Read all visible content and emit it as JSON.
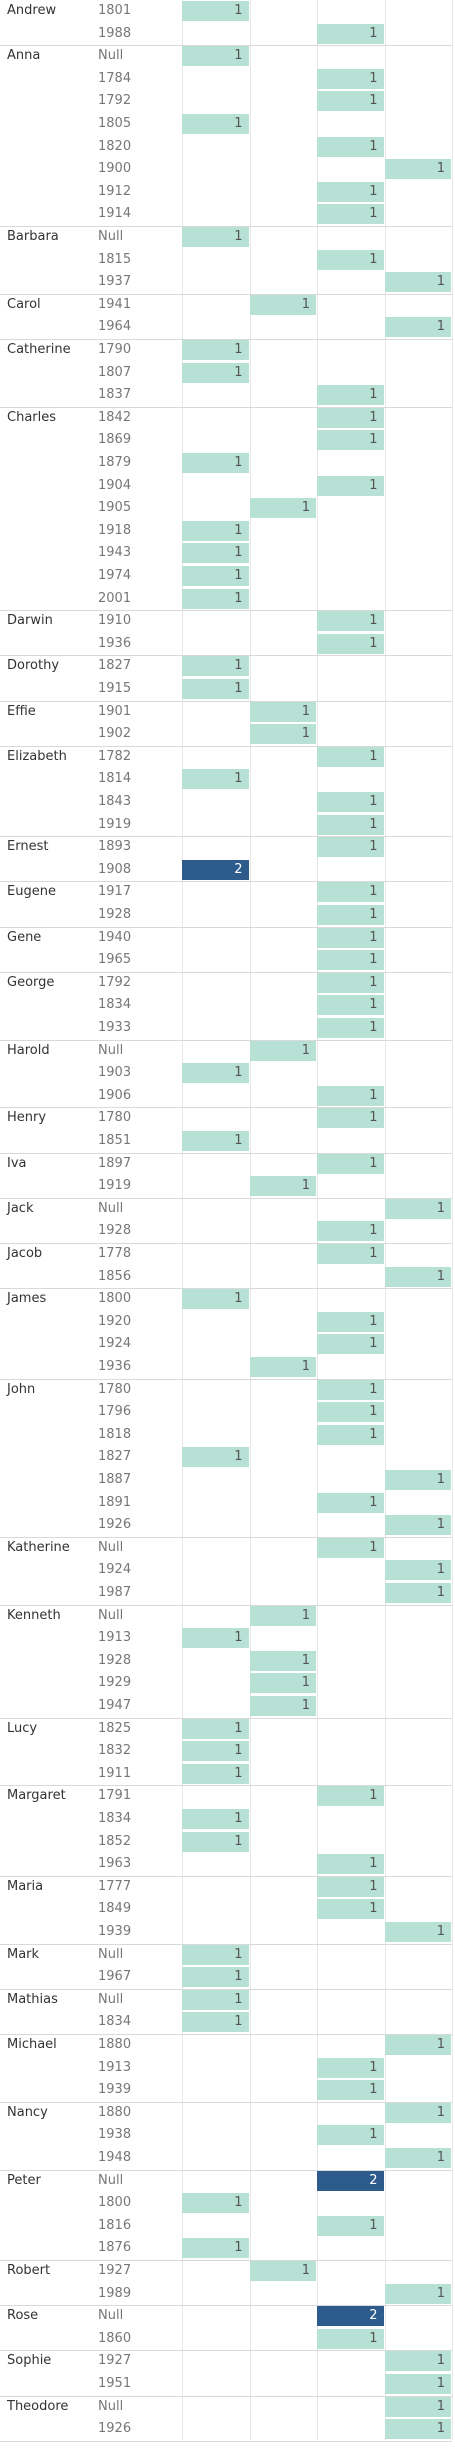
{
  "columns": 4,
  "colors": {
    "low": "#b7e1d5",
    "high": "#2c5b8c"
  },
  "chart_data": {
    "type": "table",
    "groups": [
      {
        "name": "Andrew",
        "rows": [
          {
            "year": "1801",
            "col": 0,
            "value": 1
          },
          {
            "year": "1988",
            "col": 2,
            "value": 1
          }
        ]
      },
      {
        "name": "Anna",
        "rows": [
          {
            "year": "Null",
            "col": 0,
            "value": 1
          },
          {
            "year": "1784",
            "col": 2,
            "value": 1
          },
          {
            "year": "1792",
            "col": 2,
            "value": 1
          },
          {
            "year": "1805",
            "col": 0,
            "value": 1
          },
          {
            "year": "1820",
            "col": 2,
            "value": 1
          },
          {
            "year": "1900",
            "col": 3,
            "value": 1
          },
          {
            "year": "1912",
            "col": 2,
            "value": 1
          },
          {
            "year": "1914",
            "col": 2,
            "value": 1
          }
        ]
      },
      {
        "name": "Barbara",
        "rows": [
          {
            "year": "Null",
            "col": 0,
            "value": 1
          },
          {
            "year": "1815",
            "col": 2,
            "value": 1
          },
          {
            "year": "1937",
            "col": 3,
            "value": 1
          }
        ]
      },
      {
        "name": "Carol",
        "rows": [
          {
            "year": "1941",
            "col": 1,
            "value": 1
          },
          {
            "year": "1964",
            "col": 3,
            "value": 1
          }
        ]
      },
      {
        "name": "Catherine",
        "rows": [
          {
            "year": "1790",
            "col": 0,
            "value": 1
          },
          {
            "year": "1807",
            "col": 0,
            "value": 1
          },
          {
            "year": "1837",
            "col": 2,
            "value": 1
          }
        ]
      },
      {
        "name": "Charles",
        "rows": [
          {
            "year": "1842",
            "col": 2,
            "value": 1
          },
          {
            "year": "1869",
            "col": 2,
            "value": 1
          },
          {
            "year": "1879",
            "col": 0,
            "value": 1
          },
          {
            "year": "1904",
            "col": 2,
            "value": 1
          },
          {
            "year": "1905",
            "col": 1,
            "value": 1
          },
          {
            "year": "1918",
            "col": 0,
            "value": 1
          },
          {
            "year": "1943",
            "col": 0,
            "value": 1
          },
          {
            "year": "1974",
            "col": 0,
            "value": 1
          },
          {
            "year": "2001",
            "col": 0,
            "value": 1
          }
        ]
      },
      {
        "name": "Darwin",
        "rows": [
          {
            "year": "1910",
            "col": 2,
            "value": 1
          },
          {
            "year": "1936",
            "col": 2,
            "value": 1
          }
        ]
      },
      {
        "name": "Dorothy",
        "rows": [
          {
            "year": "1827",
            "col": 0,
            "value": 1
          },
          {
            "year": "1915",
            "col": 0,
            "value": 1
          }
        ]
      },
      {
        "name": "Effie",
        "rows": [
          {
            "year": "1901",
            "col": 1,
            "value": 1
          },
          {
            "year": "1902",
            "col": 1,
            "value": 1
          }
        ]
      },
      {
        "name": "Elizabeth",
        "rows": [
          {
            "year": "1782",
            "col": 2,
            "value": 1
          },
          {
            "year": "1814",
            "col": 0,
            "value": 1
          },
          {
            "year": "1843",
            "col": 2,
            "value": 1
          },
          {
            "year": "1919",
            "col": 2,
            "value": 1
          }
        ]
      },
      {
        "name": "Ernest",
        "rows": [
          {
            "year": "1893",
            "col": 2,
            "value": 1
          },
          {
            "year": "1908",
            "col": 0,
            "value": 2
          }
        ]
      },
      {
        "name": "Eugene",
        "rows": [
          {
            "year": "1917",
            "col": 2,
            "value": 1
          },
          {
            "year": "1928",
            "col": 2,
            "value": 1
          }
        ]
      },
      {
        "name": "Gene",
        "rows": [
          {
            "year": "1940",
            "col": 2,
            "value": 1
          },
          {
            "year": "1965",
            "col": 2,
            "value": 1
          }
        ]
      },
      {
        "name": "George",
        "rows": [
          {
            "year": "1792",
            "col": 2,
            "value": 1
          },
          {
            "year": "1834",
            "col": 2,
            "value": 1
          },
          {
            "year": "1933",
            "col": 2,
            "value": 1
          }
        ]
      },
      {
        "name": "Harold",
        "rows": [
          {
            "year": "Null",
            "col": 1,
            "value": 1
          },
          {
            "year": "1903",
            "col": 0,
            "value": 1
          },
          {
            "year": "1906",
            "col": 2,
            "value": 1
          }
        ]
      },
      {
        "name": "Henry",
        "rows": [
          {
            "year": "1780",
            "col": 2,
            "value": 1
          },
          {
            "year": "1851",
            "col": 0,
            "value": 1
          }
        ]
      },
      {
        "name": "Iva",
        "rows": [
          {
            "year": "1897",
            "col": 2,
            "value": 1
          },
          {
            "year": "1919",
            "col": 1,
            "value": 1
          }
        ]
      },
      {
        "name": "Jack",
        "rows": [
          {
            "year": "Null",
            "col": 3,
            "value": 1
          },
          {
            "year": "1928",
            "col": 2,
            "value": 1
          }
        ]
      },
      {
        "name": "Jacob",
        "rows": [
          {
            "year": "1778",
            "col": 2,
            "value": 1
          },
          {
            "year": "1856",
            "col": 3,
            "value": 1
          }
        ]
      },
      {
        "name": "James",
        "rows": [
          {
            "year": "1800",
            "col": 0,
            "value": 1
          },
          {
            "year": "1920",
            "col": 2,
            "value": 1
          },
          {
            "year": "1924",
            "col": 2,
            "value": 1
          },
          {
            "year": "1936",
            "col": 1,
            "value": 1
          }
        ]
      },
      {
        "name": "John",
        "rows": [
          {
            "year": "1780",
            "col": 2,
            "value": 1
          },
          {
            "year": "1796",
            "col": 2,
            "value": 1
          },
          {
            "year": "1818",
            "col": 2,
            "value": 1
          },
          {
            "year": "1827",
            "col": 0,
            "value": 1
          },
          {
            "year": "1887",
            "col": 3,
            "value": 1
          },
          {
            "year": "1891",
            "col": 2,
            "value": 1
          },
          {
            "year": "1926",
            "col": 3,
            "value": 1
          }
        ]
      },
      {
        "name": "Katherine",
        "rows": [
          {
            "year": "Null",
            "col": 2,
            "value": 1
          },
          {
            "year": "1924",
            "col": 3,
            "value": 1
          },
          {
            "year": "1987",
            "col": 3,
            "value": 1
          }
        ]
      },
      {
        "name": "Kenneth",
        "rows": [
          {
            "year": "Null",
            "col": 1,
            "value": 1
          },
          {
            "year": "1913",
            "col": 0,
            "value": 1
          },
          {
            "year": "1928",
            "col": 1,
            "value": 1
          },
          {
            "year": "1929",
            "col": 1,
            "value": 1
          },
          {
            "year": "1947",
            "col": 1,
            "value": 1
          }
        ]
      },
      {
        "name": "Lucy",
        "rows": [
          {
            "year": "1825",
            "col": 0,
            "value": 1
          },
          {
            "year": "1832",
            "col": 0,
            "value": 1
          },
          {
            "year": "1911",
            "col": 0,
            "value": 1
          }
        ]
      },
      {
        "name": "Margaret",
        "rows": [
          {
            "year": "1791",
            "col": 2,
            "value": 1
          },
          {
            "year": "1834",
            "col": 0,
            "value": 1
          },
          {
            "year": "1852",
            "col": 0,
            "value": 1
          },
          {
            "year": "1963",
            "col": 2,
            "value": 1
          }
        ]
      },
      {
        "name": "Maria",
        "rows": [
          {
            "year": "1777",
            "col": 2,
            "value": 1
          },
          {
            "year": "1849",
            "col": 2,
            "value": 1
          },
          {
            "year": "1939",
            "col": 3,
            "value": 1
          }
        ]
      },
      {
        "name": "Mark",
        "rows": [
          {
            "year": "Null",
            "col": 0,
            "value": 1
          },
          {
            "year": "1967",
            "col": 0,
            "value": 1
          }
        ]
      },
      {
        "name": "Mathias",
        "rows": [
          {
            "year": "Null",
            "col": 0,
            "value": 1
          },
          {
            "year": "1834",
            "col": 0,
            "value": 1
          }
        ]
      },
      {
        "name": "Michael",
        "rows": [
          {
            "year": "1880",
            "col": 3,
            "value": 1
          },
          {
            "year": "1913",
            "col": 2,
            "value": 1
          },
          {
            "year": "1939",
            "col": 2,
            "value": 1
          }
        ]
      },
      {
        "name": "Nancy",
        "rows": [
          {
            "year": "1880",
            "col": 3,
            "value": 1
          },
          {
            "year": "1938",
            "col": 2,
            "value": 1
          },
          {
            "year": "1948",
            "col": 3,
            "value": 1
          }
        ]
      },
      {
        "name": "Peter",
        "rows": [
          {
            "year": "Null",
            "col": 2,
            "value": 2
          },
          {
            "year": "1800",
            "col": 0,
            "value": 1
          },
          {
            "year": "1816",
            "col": 2,
            "value": 1
          },
          {
            "year": "1876",
            "col": 0,
            "value": 1
          }
        ]
      },
      {
        "name": "Robert",
        "rows": [
          {
            "year": "1927",
            "col": 1,
            "value": 1
          },
          {
            "year": "1989",
            "col": 3,
            "value": 1
          }
        ]
      },
      {
        "name": "Rose",
        "rows": [
          {
            "year": "Null",
            "col": 2,
            "value": 2
          },
          {
            "year": "1860",
            "col": 2,
            "value": 1
          }
        ]
      },
      {
        "name": "Sophie",
        "rows": [
          {
            "year": "1927",
            "col": 3,
            "value": 1
          },
          {
            "year": "1951",
            "col": 3,
            "value": 1
          }
        ]
      },
      {
        "name": "Theodore",
        "rows": [
          {
            "year": "Null",
            "col": 3,
            "value": 1
          },
          {
            "year": "1926",
            "col": 3,
            "value": 1
          }
        ]
      }
    ]
  }
}
